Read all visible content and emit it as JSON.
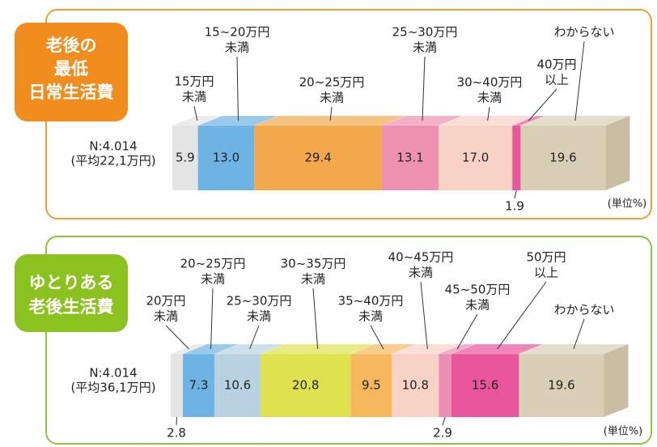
{
  "chart_data": [
    {
      "type": "bar",
      "stacked": true,
      "orientation": "horizontal",
      "title": [
        "老後の",
        "最低",
        "日常生活費"
      ],
      "sample": [
        "N:4.014",
        "(平均22,1万円)"
      ],
      "unit": "(単位%)",
      "categories": [
        [
          "15万円",
          "未満"
        ],
        [
          "15~20万円",
          "未満"
        ],
        [
          "20~25万円",
          "未満"
        ],
        [
          "25~30万円",
          "未満"
        ],
        [
          "30~40万円",
          "未満"
        ],
        [
          "40万円",
          "以上"
        ],
        [
          "わからない"
        ]
      ],
      "values": [
        5.9,
        13.0,
        29.4,
        13.1,
        17.0,
        1.9,
        19.6
      ],
      "value_labels": [
        "5.9",
        "13.0",
        "29.4",
        "13.1",
        "17.0",
        "1.9",
        "19.6"
      ],
      "colors": [
        "#e4e4e4",
        "#6db3e3",
        "#f3a84b",
        "#ee90b0",
        "#f8d2c6",
        "#e8559a",
        "#d9cfb6"
      ],
      "badge_color": "#f18c1e",
      "frame_color": "#f0a030"
    },
    {
      "type": "bar",
      "stacked": true,
      "orientation": "horizontal",
      "title": [
        "ゆとりある",
        "老後生活費"
      ],
      "sample": [
        "N:4.014",
        "(平均36,1万円)"
      ],
      "unit": "(単位%)",
      "categories": [
        [
          "20万円",
          "未満"
        ],
        [
          "20~25万円",
          "未満"
        ],
        [
          "25~30万円",
          "未満"
        ],
        [
          "30~35万円",
          "未満"
        ],
        [
          "35~40万円",
          "未満"
        ],
        [
          "40~45万円",
          "未満"
        ],
        [
          "45~50万円",
          "未満"
        ],
        [
          "50万円",
          "以上"
        ],
        [
          "わからない"
        ]
      ],
      "values": [
        2.8,
        7.3,
        10.6,
        20.8,
        9.5,
        10.8,
        2.9,
        15.6,
        19.6
      ],
      "value_labels": [
        "2.8",
        "7.3",
        "10.6",
        "20.8",
        "9.5",
        "10.8",
        "2.9",
        "15.6",
        "19.6"
      ],
      "colors": [
        "#e4e4e4",
        "#6db3e3",
        "#b8d2e2",
        "#dfe24e",
        "#f6b85d",
        "#f8d2c6",
        "#ec8db5",
        "#e8559a",
        "#d9cfb6"
      ],
      "badge_color": "#8cc21f",
      "frame_color": "#8cc63f"
    }
  ]
}
